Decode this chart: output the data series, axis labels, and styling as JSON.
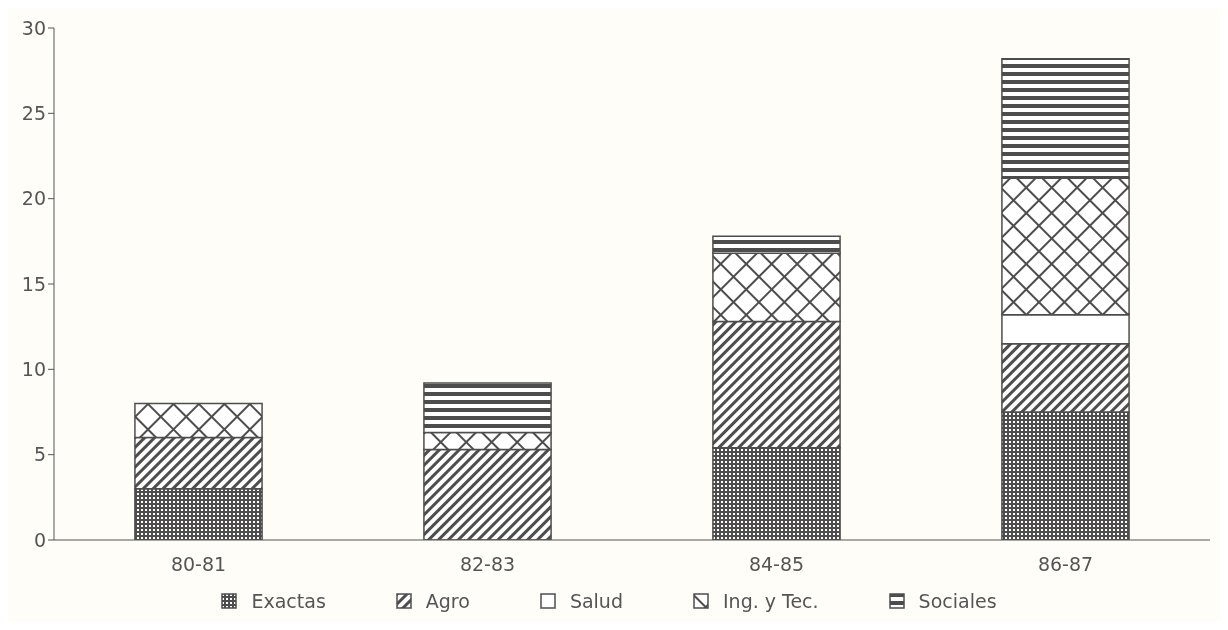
{
  "chart_data": {
    "type": "bar",
    "stacked": true,
    "categories": [
      "80-81",
      "82-83",
      "84-85",
      "86-87"
    ],
    "series": [
      {
        "name": "Exactas",
        "color": "#4d4d4d",
        "values": [
          3,
          null,
          5.4,
          7.5
        ]
      },
      {
        "name": "Agro",
        "color": "#4d4d4d",
        "values": [
          3,
          5.3,
          7.4,
          4
        ]
      },
      {
        "name": "Salud",
        "color": "#ffffff",
        "values": [
          null,
          null,
          null,
          1.7
        ]
      },
      {
        "name": "Ing. y Tec.",
        "color": "#4d4d4d",
        "values": [
          2,
          1,
          4,
          8
        ]
      },
      {
        "name": "Sociales",
        "color": "#4d4d4d",
        "values": [
          null,
          2.9,
          1,
          7
        ]
      }
    ],
    "ylim": [
      0,
      30
    ],
    "yticks": [
      0,
      5,
      10,
      15,
      20,
      25,
      30
    ],
    "grid": false,
    "legend": "bottom"
  }
}
